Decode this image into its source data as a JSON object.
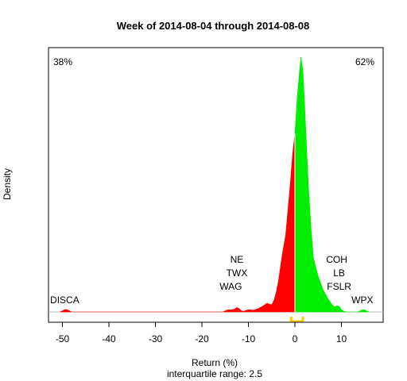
{
  "chart_data": {
    "type": "area",
    "title": "Week of 2014-08-04 through 2014-08-08",
    "xlabel": "Return (%)",
    "subtitle": "interquartile range: 2.5",
    "ylabel": "Density",
    "xlim": [
      -53,
      17
    ],
    "ylim": [
      0,
      1.0
    ],
    "x_ticks": [
      -50,
      -40,
      -30,
      -20,
      -10,
      0,
      10
    ],
    "neg_pct": "38%",
    "pos_pct": "62%",
    "colors": {
      "negative": "#ff0000",
      "positive": "#00ee00",
      "iqr": "#ffcc00",
      "neg_text": "#dd0000",
      "pos_text": "#009900"
    },
    "iqr": [
      -0.8,
      1.7
    ],
    "density_neg": [
      [
        -50.5,
        0
      ],
      [
        -50,
        0.004
      ],
      [
        -49.5,
        0.009
      ],
      [
        -49,
        0.009
      ],
      [
        -48.5,
        0.004
      ],
      [
        -48,
        0
      ],
      [
        -15.5,
        0
      ],
      [
        -15,
        0.004
      ],
      [
        -14.5,
        0.008
      ],
      [
        -14,
        0.008
      ],
      [
        -13,
        0.011
      ],
      [
        -12.5,
        0.017
      ],
      [
        -12,
        0.013
      ],
      [
        -11.5,
        0.004
      ],
      [
        -11,
        0.003
      ],
      [
        -10.5,
        0.006
      ],
      [
        -10,
        0.009
      ],
      [
        -9,
        0.007
      ],
      [
        -8,
        0.012
      ],
      [
        -7,
        0.022
      ],
      [
        -6,
        0.034
      ],
      [
        -5,
        0.028
      ],
      [
        -4.5,
        0.046
      ],
      [
        -4,
        0.078
      ],
      [
        -3.5,
        0.125
      ],
      [
        -3,
        0.19
      ],
      [
        -2.5,
        0.25
      ],
      [
        -2,
        0.3
      ],
      [
        -1.5,
        0.4
      ],
      [
        -1,
        0.5
      ],
      [
        -0.5,
        0.62
      ],
      [
        0,
        0.7
      ]
    ],
    "density_pos": [
      [
        0,
        0.7
      ],
      [
        0.5,
        0.84
      ],
      [
        1,
        0.95
      ],
      [
        1.3,
        1.0
      ],
      [
        1.7,
        0.95
      ],
      [
        2,
        0.85
      ],
      [
        2.5,
        0.65
      ],
      [
        3,
        0.46
      ],
      [
        3.5,
        0.32
      ],
      [
        4,
        0.21
      ],
      [
        5,
        0.14
      ],
      [
        6,
        0.09
      ],
      [
        7,
        0.055
      ],
      [
        8,
        0.028
      ],
      [
        8.5,
        0.02
      ],
      [
        9,
        0.024
      ],
      [
        9.5,
        0.022
      ],
      [
        10,
        0.009
      ],
      [
        10.5,
        0.003
      ],
      [
        11,
        0
      ],
      [
        13.5,
        0
      ],
      [
        14,
        0.004
      ],
      [
        14.5,
        0.008
      ],
      [
        15,
        0.008
      ],
      [
        15.5,
        0.003
      ],
      [
        16,
        0
      ]
    ],
    "annotations": [
      {
        "text": "DISCA",
        "x": -49.5,
        "row": 0
      },
      {
        "text": "WAG",
        "x": -13.8,
        "row": 1
      },
      {
        "text": "TWX",
        "x": -12.5,
        "row": 2
      },
      {
        "text": "NE",
        "x": -12.5,
        "row": 3
      },
      {
        "text": "FSLR",
        "x": 9.5,
        "row": 1
      },
      {
        "text": "LB",
        "x": 9.5,
        "row": 2
      },
      {
        "text": "COH",
        "x": 9.0,
        "row": 3
      },
      {
        "text": "WPX",
        "x": 14.5,
        "row": 0
      }
    ]
  }
}
